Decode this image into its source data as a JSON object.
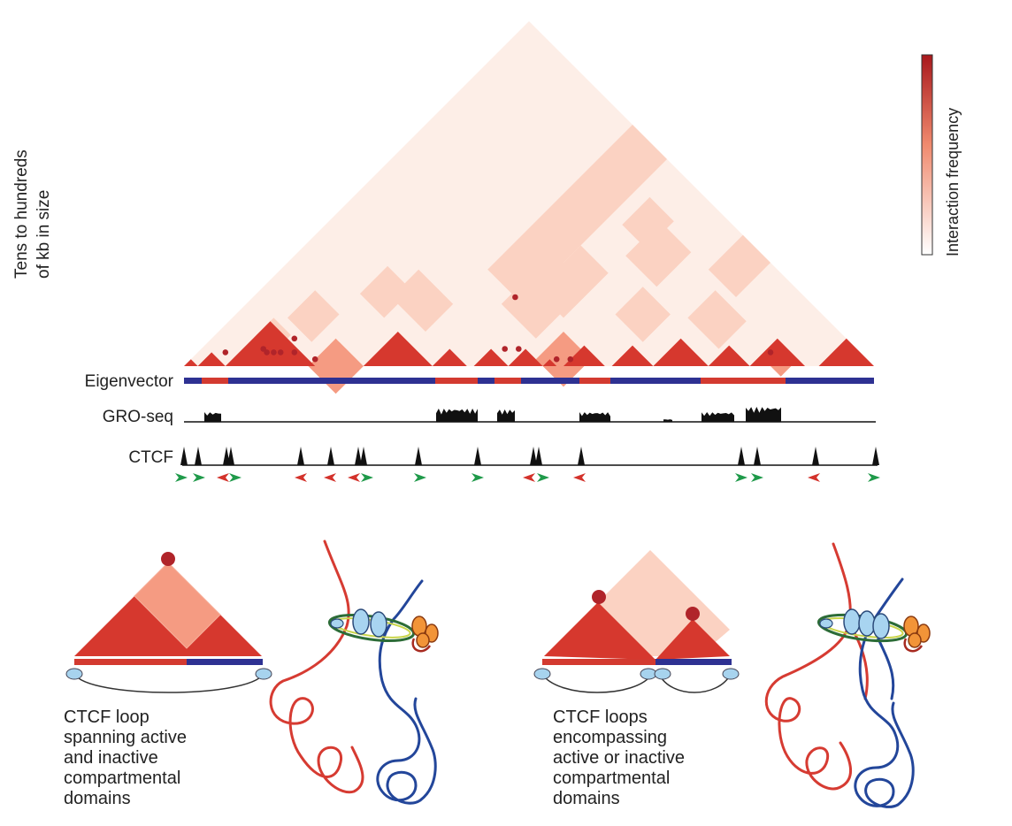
{
  "figure": {
    "side_label": {
      "line1": "Tens to hundreds",
      "line2": "of kb in size"
    },
    "scale_bar": {
      "label": "Interaction frequency",
      "color_high": "#a8181c",
      "color_low": "#ffffff"
    },
    "tracks": {
      "eigenvector": "Eigenvector",
      "gro_seq": "GRO-seq",
      "ctcf": "CTCF"
    },
    "colors": {
      "active": "#d33a30",
      "inactive": "#2e3192",
      "domain_strong": "#d6382e",
      "domain_medium": "#f59b82",
      "domain_light": "#fbd2c2",
      "domain_faint": "#fdeee7",
      "loop_dot": "#b0242a",
      "motif_forward": "#1f9a4a",
      "motif_reverse": "#d3322b",
      "signal": "#111111"
    },
    "panel_left_caption": [
      "CTCF loop",
      "spanning active",
      "and inactive",
      "compartmental",
      "domains"
    ],
    "panel_right_caption": [
      "CTCF loops",
      "encompassing",
      "active or inactive",
      "compartmental",
      "domains"
    ]
  }
}
